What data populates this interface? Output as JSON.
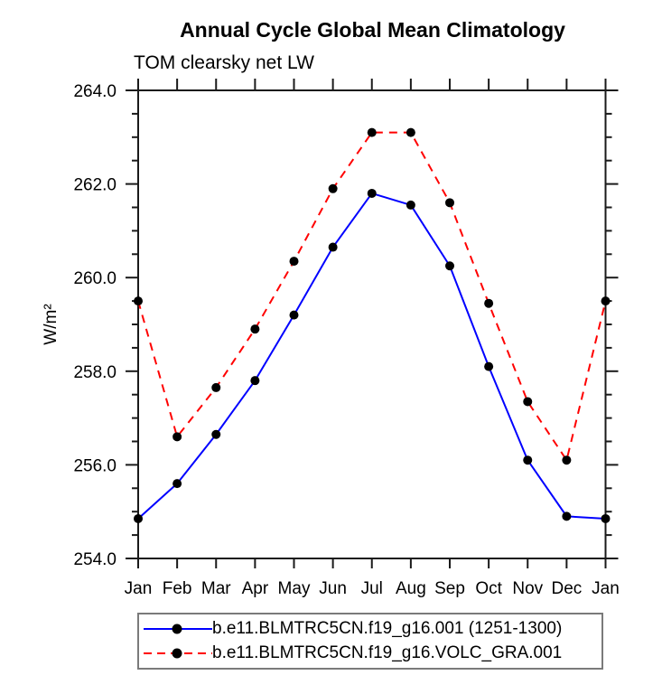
{
  "chart_data": {
    "type": "line",
    "title": "Annual Cycle Global Mean Climatology",
    "subtitle": "TOM clearsky net LW",
    "ylabel": "W/m²",
    "xlabel": "",
    "categories": [
      "Jan",
      "Feb",
      "Mar",
      "Apr",
      "May",
      "Jun",
      "Jul",
      "Aug",
      "Sep",
      "Oct",
      "Nov",
      "Dec",
      "Jan"
    ],
    "ylim": [
      254.0,
      264.0
    ],
    "ytick_major_step": 2.0,
    "ytick_minor_step": 0.5,
    "ytick_labels": [
      "254.0",
      "256.0",
      "258.0",
      "260.0",
      "262.0",
      "264.0"
    ],
    "grid": false,
    "legend_position": "bottom",
    "marker": "filled-circle",
    "marker_color": "#000000",
    "axis_color": "#1a1a1a",
    "series": [
      {
        "name": "b.e11.BLMTRC5CN.f19_g16.001 (1251-1300)",
        "color": "#0000ff",
        "line_style": "solid",
        "values": [
          254.85,
          255.6,
          256.65,
          257.8,
          259.2,
          260.65,
          261.8,
          261.55,
          260.25,
          258.1,
          256.1,
          254.9,
          254.85
        ]
      },
      {
        "name": "b.e11.BLMTRC5CN.f19_g16.VOLC_GRA.001",
        "color": "#ff0000",
        "line_style": "dashed",
        "values": [
          259.5,
          256.6,
          257.65,
          258.9,
          260.35,
          261.9,
          263.1,
          263.1,
          261.6,
          259.45,
          257.35,
          256.1,
          259.5
        ]
      }
    ]
  }
}
